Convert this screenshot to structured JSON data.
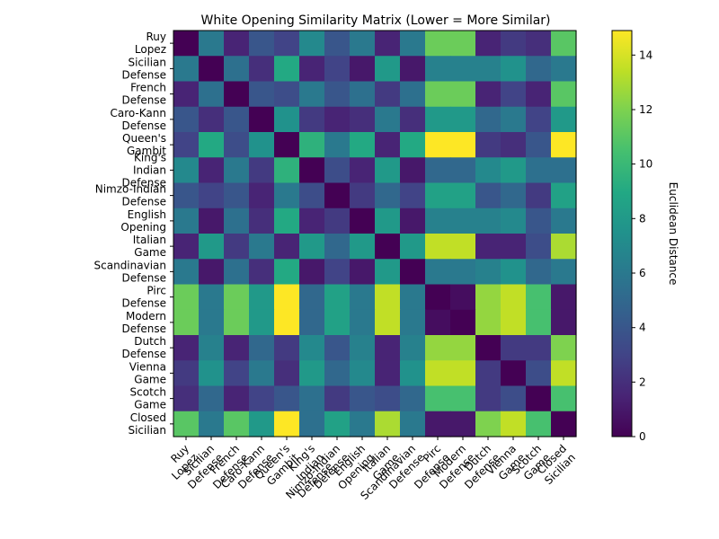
{
  "chart_data": {
    "type": "heatmap",
    "title": "White Opening Similarity Matrix (Lower = More Similar)",
    "colorbar_label": "Euclidean Distance",
    "colormap": "viridis",
    "vmin": 0,
    "vmax": 14.9,
    "colorbar_ticks": [
      0,
      2,
      4,
      6,
      8,
      10,
      12,
      14
    ],
    "labels": [
      [
        "Ruy",
        "Lopez"
      ],
      [
        "Sicilian",
        "Defense"
      ],
      [
        "French",
        "Defense"
      ],
      [
        "Caro-Kann",
        "Defense"
      ],
      [
        "Queen's",
        "Gambit"
      ],
      [
        "King's",
        "Indian",
        "Defense"
      ],
      [
        "Nimzo-Indian",
        "Defense"
      ],
      [
        "English",
        "Opening"
      ],
      [
        "Italian",
        "Game"
      ],
      [
        "Scandinavian",
        "Defense"
      ],
      [
        "Pirc",
        "Defense"
      ],
      [
        "Modern",
        "Defense"
      ],
      [
        "Dutch",
        "Defense"
      ],
      [
        "Vienna",
        "Game"
      ],
      [
        "Scotch",
        "Game"
      ],
      [
        "Closed",
        "Sicilian"
      ]
    ],
    "matrix": [
      [
        0,
        6,
        1.5,
        4,
        3,
        7,
        4,
        6,
        1.5,
        6,
        11.5,
        11.5,
        1.5,
        2.5,
        2,
        11
      ],
      [
        6,
        0,
        5.5,
        2,
        9,
        1.5,
        3,
        1,
        8,
        1,
        6.5,
        6.5,
        6.5,
        7.5,
        5,
        6
      ],
      [
        1.5,
        5.5,
        0,
        4,
        3.5,
        6,
        4,
        5.5,
        2.5,
        5.5,
        11.5,
        11.5,
        1.5,
        3,
        1.5,
        11
      ],
      [
        4,
        2,
        4,
        0,
        7.5,
        2.5,
        1.5,
        2,
        6,
        2,
        8,
        8,
        5,
        6,
        3,
        8
      ],
      [
        3,
        9,
        3.5,
        7.5,
        0,
        9.5,
        6,
        9,
        1.5,
        9,
        14.9,
        14.9,
        2.5,
        2,
        4,
        14.9
      ],
      [
        7,
        1.5,
        6,
        2.5,
        9.5,
        0,
        3.5,
        1.5,
        8,
        1,
        5,
        5,
        7,
        8,
        5.5,
        5.5
      ],
      [
        4,
        3,
        4,
        1.5,
        6,
        3.5,
        0,
        2.5,
        5,
        3,
        8.5,
        8.5,
        4,
        5,
        2.5,
        8.5
      ],
      [
        6,
        1,
        5.5,
        2,
        9,
        1.5,
        2.5,
        0,
        8,
        1,
        6.5,
        6.5,
        6.5,
        7,
        4,
        6
      ],
      [
        1.5,
        8,
        2.5,
        6,
        1.5,
        8,
        5,
        8,
        0,
        8,
        13.5,
        13.5,
        1.5,
        1.5,
        3.5,
        13
      ],
      [
        6,
        1,
        5.5,
        2,
        9,
        1,
        3,
        1,
        8,
        0,
        6,
        6,
        6.5,
        7.5,
        5,
        6
      ],
      [
        11.5,
        6,
        11.5,
        8,
        14.9,
        5,
        8.5,
        6,
        13.5,
        6,
        0,
        0.5,
        12.5,
        13.5,
        10.5,
        1
      ],
      [
        11.5,
        6,
        11.5,
        8,
        14.9,
        5,
        8.5,
        6,
        13.5,
        6,
        0.5,
        0,
        12.5,
        13.5,
        10.5,
        1
      ],
      [
        1.5,
        6.5,
        1.5,
        5,
        2.5,
        7,
        4,
        6.5,
        1.5,
        6.5,
        12.5,
        12.5,
        0,
        2.5,
        2.5,
        12
      ],
      [
        2.5,
        7.5,
        3,
        6,
        2,
        8,
        5,
        7,
        1.5,
        7.5,
        13.5,
        13.5,
        2.5,
        0,
        3.5,
        13.5
      ],
      [
        2,
        5,
        1.5,
        3,
        4,
        5.5,
        2.5,
        4,
        3.5,
        5,
        10.5,
        10.5,
        2.5,
        3.5,
        0,
        10.5
      ],
      [
        11,
        6,
        11,
        8,
        14.9,
        5.5,
        8.5,
        6,
        13,
        6,
        1,
        1,
        12,
        13.5,
        10.5,
        0
      ]
    ]
  }
}
